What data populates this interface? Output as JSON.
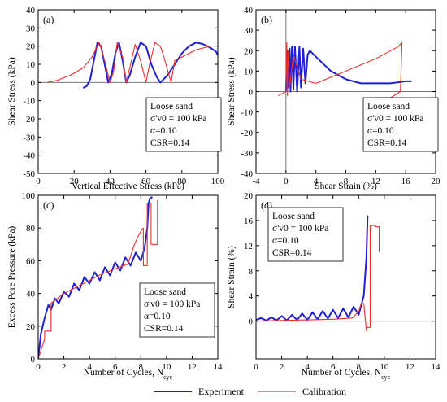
{
  "legend": {
    "experiment": "Experiment",
    "calibration": "Calibration",
    "experiment_color": "#1f1fd6",
    "calibration_color": "#e8302a"
  },
  "chart_data": [
    {
      "id": "a",
      "type": "line",
      "panel_label": "(a)",
      "xlabel": "Vertical Effective Stress (kPa)",
      "ylabel": "Shear Stress (kPa)",
      "xlim": [
        0,
        100
      ],
      "ylim": [
        -50,
        40
      ],
      "xticks": [
        0,
        20,
        40,
        60,
        80,
        100
      ],
      "yticks": [
        -50,
        -40,
        -30,
        -20,
        -10,
        0,
        10,
        20,
        30,
        40
      ],
      "zero_line_y": 0,
      "annotation": {
        "lines": [
          "Loose sand",
          "σ'v0 = 100 kPa",
          "α=0.10",
          "CSR=0.14"
        ]
      },
      "series": [
        {
          "key": "experiment",
          "x": [
            100,
            99,
            96,
            92,
            88,
            84,
            80,
            76,
            72,
            70,
            68,
            66,
            63,
            60,
            57,
            54,
            51,
            49,
            47,
            45,
            43,
            41,
            39,
            37,
            35,
            33,
            31,
            29,
            27,
            25
          ],
          "y": [
            15,
            17,
            19,
            21,
            22,
            20,
            16,
            10,
            4,
            2,
            0,
            3,
            10,
            20,
            22,
            14,
            4,
            0,
            12,
            22,
            16,
            5,
            0,
            10,
            20,
            22,
            12,
            2,
            -2,
            -3
          ]
        },
        {
          "key": "calibration",
          "x": [
            96,
            92,
            88,
            84,
            80,
            76,
            74,
            72,
            70,
            68,
            65,
            62,
            60,
            57,
            54,
            51,
            49,
            47,
            44,
            42,
            40,
            37,
            34,
            30,
            25,
            18,
            10,
            5
          ],
          "y": [
            20,
            19,
            18,
            16,
            14,
            12,
            0,
            7,
            14,
            20,
            22,
            10,
            0,
            12,
            21,
            8,
            0,
            14,
            22,
            6,
            0,
            12,
            22,
            14,
            8,
            4,
            1,
            0
          ]
        }
      ]
    },
    {
      "id": "b",
      "type": "line",
      "panel_label": "(b)",
      "xlabel": "Shear Strain (%)",
      "ylabel": "Shear Stress (kPa)",
      "xlim": [
        -4,
        20
      ],
      "ylim": [
        -40,
        40
      ],
      "xticks": [
        -4,
        0,
        4,
        8,
        12,
        16,
        20
      ],
      "yticks": [
        -40,
        -30,
        -20,
        -10,
        0,
        10,
        20,
        30,
        40
      ],
      "zero_line_y": 0,
      "zero_line_x": 0,
      "annotation": {
        "lines": [
          "Loose sand",
          "σ'v0 = 100 kPa",
          "α=0.10",
          "CSR=0.14"
        ]
      },
      "series": [
        {
          "key": "experiment",
          "x": [
            0,
            0.2,
            0.3,
            0.5,
            0.6,
            0.8,
            1.0,
            1.2,
            1.5,
            1.8,
            2.0,
            2.3,
            2.6,
            2.9,
            3.2,
            4.0,
            6.0,
            8.0,
            10.0,
            12.0,
            14.0,
            16.0,
            16.8
          ],
          "y": [
            0,
            20,
            2,
            21,
            0,
            22,
            1,
            22,
            0,
            22,
            2,
            21,
            4,
            18,
            20,
            17,
            10,
            6,
            4,
            4,
            4,
            5,
            5
          ]
        },
        {
          "key": "calibration",
          "x": [
            -1,
            0,
            0.1,
            0.2,
            0.3,
            0.5,
            1.0,
            2.0,
            4.0,
            8.0,
            12.0,
            15.0,
            15.5,
            15.3,
            14.0,
            12.0
          ],
          "y": [
            -2,
            0,
            24,
            -2,
            20,
            2,
            18,
            6,
            4,
            10,
            16,
            22,
            24,
            0,
            -3,
            -3
          ]
        }
      ]
    },
    {
      "id": "c",
      "type": "line",
      "panel_label": "(c)",
      "xlabel": "Number of Cycles, N",
      "xlabel_sub": "cyc",
      "ylabel": "Excess Pore Pressure (kPa)",
      "xlim": [
        0,
        14
      ],
      "ylim": [
        0,
        100
      ],
      "xticks": [
        0,
        2,
        4,
        6,
        8,
        10,
        12,
        14
      ],
      "yticks": [
        0,
        20,
        40,
        60,
        80,
        100
      ],
      "annotation": {
        "lines": [
          "Loose sand",
          "σ'v0 = 100 kPa",
          "α=0.10",
          "CSR=0.14"
        ]
      },
      "series": [
        {
          "key": "experiment",
          "x": [
            0,
            0.2,
            0.5,
            0.8,
            1.0,
            1.3,
            1.6,
            2.0,
            2.4,
            2.8,
            3.2,
            3.6,
            4.0,
            4.4,
            4.8,
            5.2,
            5.6,
            6.0,
            6.4,
            6.8,
            7.2,
            7.6,
            8.0,
            8.3,
            8.5,
            8.6,
            8.7,
            8.9
          ],
          "y": [
            0,
            15,
            25,
            33,
            30,
            37,
            34,
            41,
            38,
            46,
            42,
            50,
            46,
            53,
            48,
            56,
            51,
            59,
            54,
            62,
            57,
            65,
            60,
            68,
            80,
            95,
            98,
            99
          ]
        },
        {
          "key": "calibration",
          "x": [
            0,
            0.5,
            0.5,
            1.0,
            1.0,
            1.5,
            2.0,
            3.0,
            4.0,
            5.0,
            6.0,
            7.0,
            7.5,
            7.8,
            8.0,
            8.2,
            8.2,
            8.5,
            8.5,
            8.8,
            8.8,
            9.3,
            9.3
          ],
          "y": [
            0,
            12,
            17,
            17,
            34,
            37,
            40,
            44,
            48,
            52,
            55,
            58,
            70,
            75,
            78,
            80,
            57,
            57,
            95,
            95,
            70,
            70,
            97
          ]
        }
      ]
    },
    {
      "id": "d",
      "type": "line",
      "panel_label": "(d)",
      "xlabel": "Number of Cycles, N",
      "xlabel_sub": "cyc",
      "ylabel": "Shear Strain (%)",
      "xlim": [
        0,
        14
      ],
      "ylim": [
        -6,
        20
      ],
      "xticks": [
        0,
        2,
        4,
        6,
        8,
        10,
        12,
        14
      ],
      "yticks": [
        0,
        4,
        8,
        12,
        16,
        20
      ],
      "zero_line_y": 0,
      "annotation": {
        "lines": [
          "Loose sand",
          "σ'v0 = 100 kPa",
          "α=0.10",
          "CSR=0.14"
        ]
      },
      "series": [
        {
          "key": "experiment",
          "x": [
            0,
            0.4,
            0.8,
            1.2,
            1.6,
            2.0,
            2.4,
            2.8,
            3.2,
            3.6,
            4.0,
            4.4,
            4.8,
            5.2,
            5.6,
            6.0,
            6.4,
            6.8,
            7.2,
            7.6,
            8.0,
            8.2,
            8.4,
            8.6,
            8.7
          ],
          "y": [
            0.2,
            0.5,
            0.1,
            0.6,
            0.1,
            0.8,
            0.1,
            1.0,
            0.2,
            1.2,
            0.2,
            1.4,
            0.3,
            1.6,
            0.4,
            1.8,
            0.5,
            2.0,
            0.6,
            2.3,
            1.0,
            2.5,
            4.0,
            10.0,
            16.8
          ]
        },
        {
          "key": "calibration",
          "x": [
            0,
            2.0,
            4.0,
            6.0,
            7.5,
            8.0,
            8.2,
            8.4,
            8.6,
            8.6,
            8.9,
            8.9,
            9.3,
            9.3,
            9.6,
            9.6
          ],
          "y": [
            0,
            0.1,
            0.2,
            0.3,
            0.5,
            1.5,
            2.8,
            2.8,
            -1.5,
            -1.0,
            -1.0,
            15.2,
            15.2,
            15.0,
            15.0,
            11.0
          ]
        }
      ]
    }
  ]
}
